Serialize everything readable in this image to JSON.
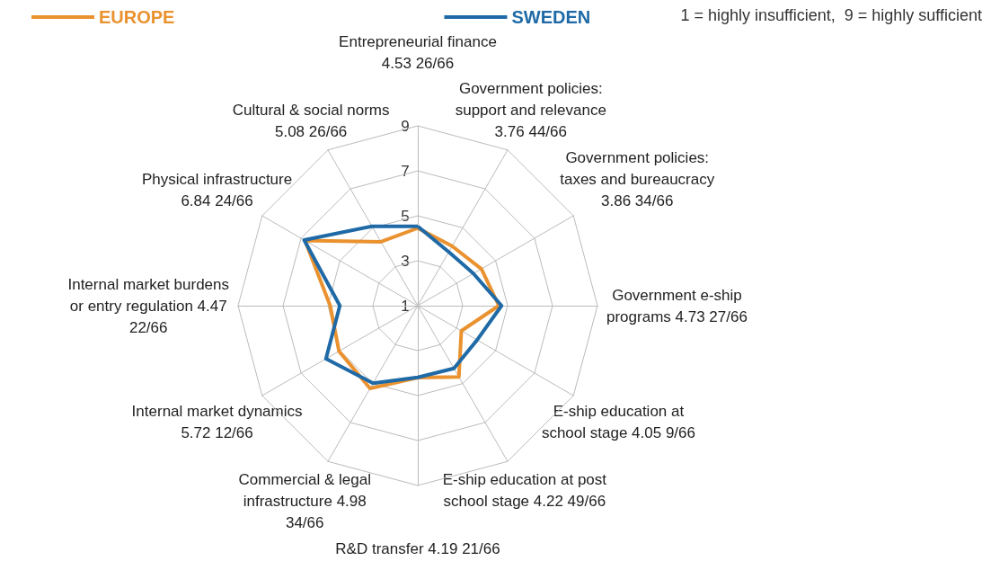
{
  "chart_data": {
    "type": "radar",
    "categories": [
      "Entrepreneurial finance 4.53 26/66",
      "Government policies: support and relevance 3.76 44/66",
      "Government policies: taxes and bureaucracy 3.86 34/66",
      "Government e-ship programs 4.73 27/66",
      "E-ship education at school stage 4.05 9/66",
      "E-ship education at post school stage 4.22 49/66",
      "R&D transfer 4.19 21/66",
      "Commercial & legal infrastructure 4.98 34/66",
      "Internal market dynamics 5.72 12/66",
      "Internal market burdens or entry regulation 4.47 22/66",
      "Physical infrastructure 6.84 24/66",
      "Cultural & social norms 5.08 26/66"
    ],
    "series": [
      {
        "name": "EUROPE",
        "color": "#ea922f",
        "values": [
          4.45,
          4.06,
          4.27,
          4.61,
          3.24,
          4.66,
          4.2,
          5.25,
          5.05,
          4.9,
          6.8,
          4.28
        ]
      },
      {
        "name": "SWEDEN",
        "color": "#1f6aa6",
        "values": [
          4.53,
          3.76,
          3.86,
          4.73,
          4.05,
          4.22,
          4.19,
          4.98,
          5.72,
          4.47,
          6.84,
          5.08
        ]
      }
    ],
    "ylim": [
      1,
      9
    ],
    "yticks": [
      1,
      3,
      5,
      7,
      9
    ],
    "grid": true,
    "legend": "top",
    "marker": "none",
    "annotations": [
      "1 = highly insufficient,  9 = highly sufficient"
    ]
  }
}
